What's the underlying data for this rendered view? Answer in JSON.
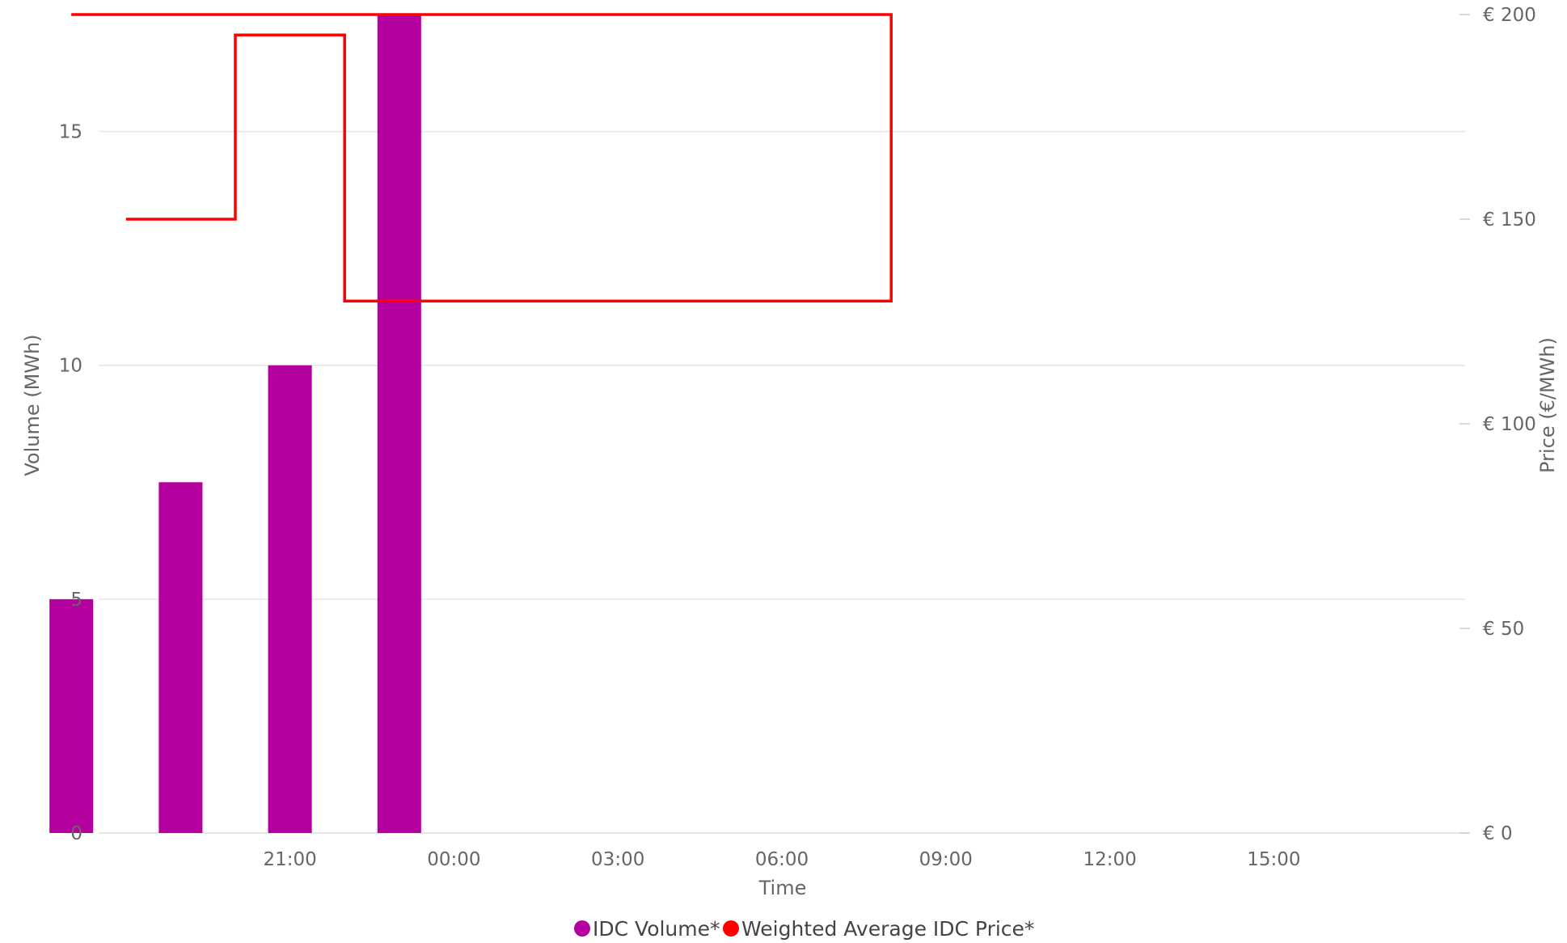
{
  "chart_data": {
    "type": "bar",
    "title": "",
    "xlabel": "Time",
    "ylabel_left": "Volume (MWh)",
    "ylabel_right": "Price (€/MWh)",
    "ylim_left": [
      0,
      17.5
    ],
    "ylim_right": [
      0,
      200
    ],
    "y_ticks_left": [
      "0",
      "5",
      "10",
      "15"
    ],
    "y_ticks_right": [
      "€ 0",
      "€ 50",
      "€ 100",
      "€ 150",
      "€ 200"
    ],
    "x_range_hours": [
      17.5,
      42.5
    ],
    "x_tick_labels": [
      "21:00",
      "00:00",
      "03:00",
      "06:00",
      "09:00",
      "12:00",
      "15:00"
    ],
    "grid": true,
    "legend_position": "bottom",
    "series": [
      {
        "name": "IDC Volume*",
        "kind": "bar",
        "color": "#b4009e",
        "axis": "left",
        "points": [
          {
            "x": "19:00",
            "value": 7.5
          },
          {
            "x": "21:00",
            "value": 10
          },
          {
            "x": "23:00",
            "value": 17.5
          },
          {
            "x": "17:00",
            "value": 5
          }
        ]
      },
      {
        "name": "Weighted Average IDC Price*",
        "kind": "step-line",
        "color": "#ff0000",
        "axis": "right",
        "points": [
          {
            "x": "18:00",
            "value": 150
          },
          {
            "x": "20:00",
            "value": 195
          },
          {
            "x": "22:00",
            "value": 130
          },
          {
            "x": "08:00",
            "value": 200
          },
          {
            "x": "17:00",
            "value": 200
          }
        ]
      }
    ]
  }
}
